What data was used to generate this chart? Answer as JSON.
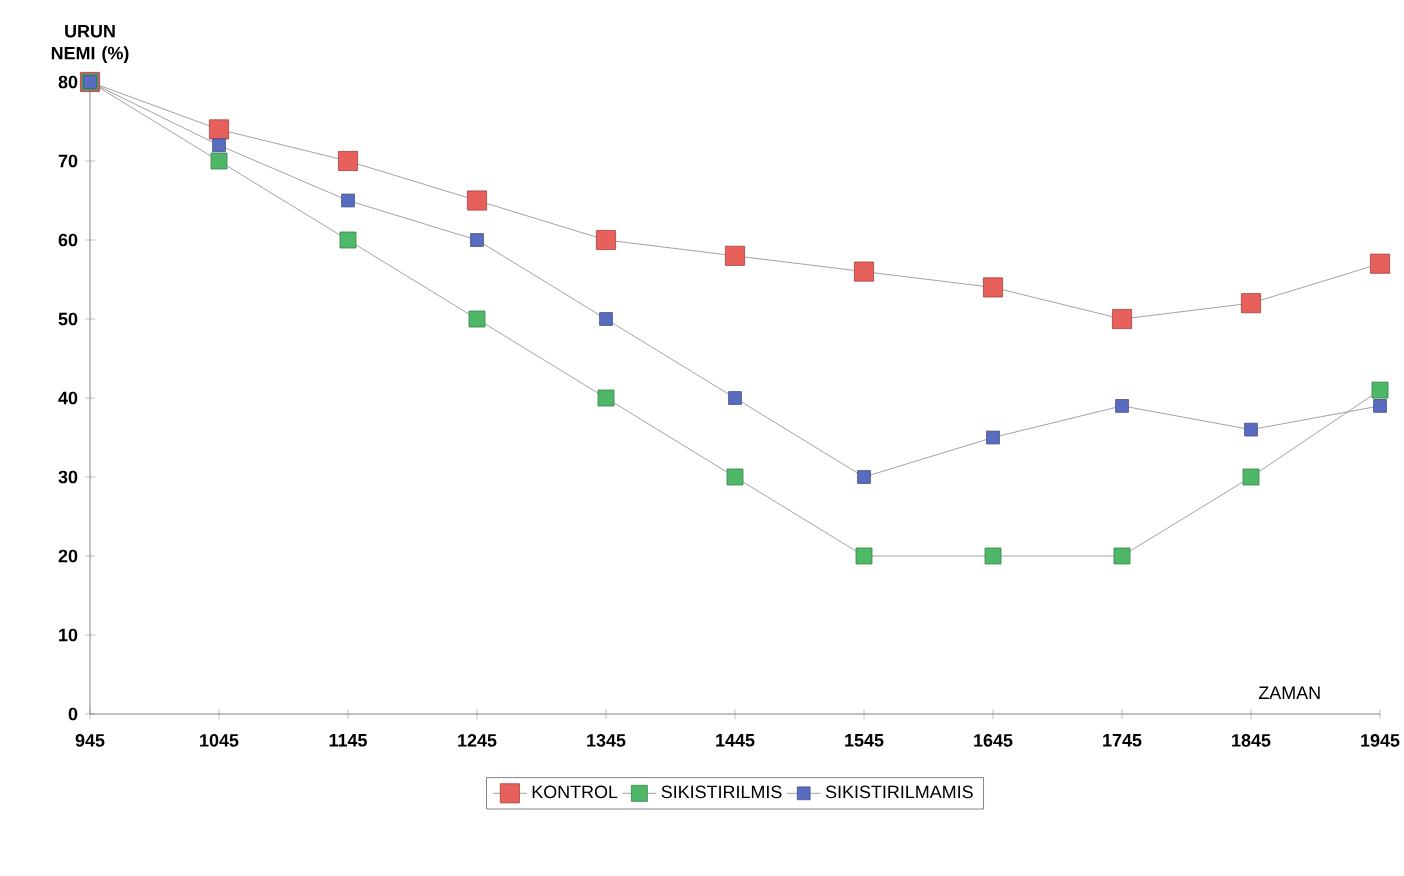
{
  "chart_data": {
    "type": "line",
    "xlabel": "ZAMAN",
    "ylabel": "URUN NEMI (%)",
    "categories": [
      "945",
      "1045",
      "1145",
      "1245",
      "1345",
      "1445",
      "1545",
      "1645",
      "1745",
      "1845",
      "1945"
    ],
    "series": [
      {
        "name": "KONTROL",
        "color": "#e8605c",
        "values": [
          80,
          74,
          70,
          65,
          60,
          58,
          56,
          54,
          50,
          52,
          57
        ]
      },
      {
        "name": "SIKISTIRILMIS",
        "color": "#4fb868",
        "values": [
          80,
          70,
          60,
          50,
          40,
          30,
          20,
          20,
          20,
          30,
          41
        ]
      },
      {
        "name": "SIKISTIRILMAMIS",
        "color": "#5a6cc0",
        "values": [
          80,
          72,
          65,
          60,
          50,
          40,
          30,
          35,
          39,
          36,
          39
        ]
      }
    ],
    "ylim": [
      0,
      80
    ],
    "yticks": [
      0,
      10,
      20,
      30,
      40,
      50,
      60,
      70,
      80
    ],
    "grid": false,
    "legend": "bottom",
    "marker": "square",
    "line_style": "solid"
  }
}
